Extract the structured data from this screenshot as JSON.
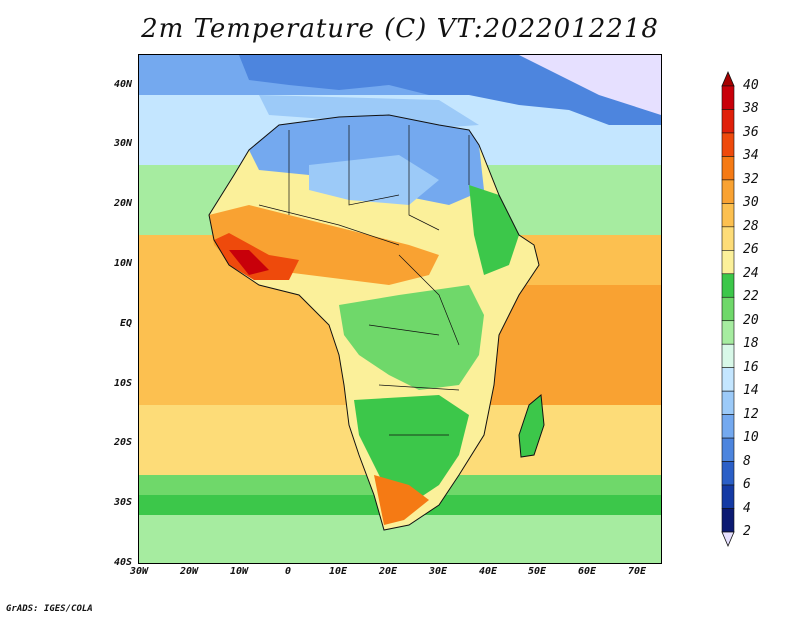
{
  "title": "2m Temperature (C) VT:2022012218",
  "credit": "GrADS: IGES/COLA",
  "map": {
    "lat_ticks": [
      "40N",
      "30N",
      "20N",
      "10N",
      "EQ",
      "10S",
      "20S",
      "30S",
      "40S"
    ],
    "lon_ticks": [
      "30W",
      "20W",
      "10W",
      "0",
      "10E",
      "20E",
      "30E",
      "40E",
      "50E",
      "60E",
      "70E"
    ]
  },
  "colorbar": {
    "labels": [
      "40",
      "38",
      "36",
      "34",
      "32",
      "30",
      "28",
      "26",
      "24",
      "22",
      "20",
      "18",
      "16",
      "14",
      "12",
      "10",
      "8",
      "6",
      "4",
      "2"
    ],
    "colors": [
      "#a50000",
      "#c8000a",
      "#e0200a",
      "#ee4a0c",
      "#f57a14",
      "#f9a232",
      "#fcc050",
      "#fddc78",
      "#fbf09a",
      "#3cc74a",
      "#6fd86a",
      "#a6eca0",
      "#d8f8e8",
      "#c4e6ff",
      "#9ccaf8",
      "#74a9ef",
      "#4d85de",
      "#2b5fc7",
      "#143aa4",
      "#0c1a72",
      "#e6e0ff"
    ]
  }
}
